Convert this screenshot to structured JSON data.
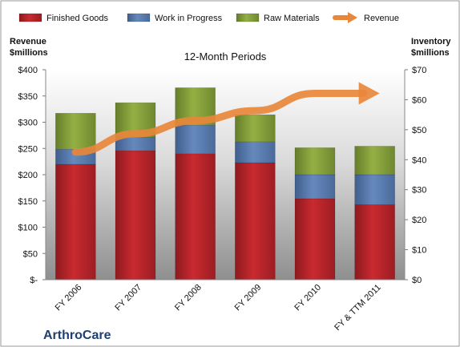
{
  "company": "ArthroCare",
  "colors": {
    "finished_goods": "#c0262c",
    "work_in_progress": "#5b7fb2",
    "raw_materials": "#8aa53e",
    "revenue": "#e8873a"
  },
  "chart_data": {
    "type": "bar",
    "stacked": true,
    "title": "12-Month Periods",
    "categories": [
      "FY 2006",
      "FY 2007",
      "FY 2008",
      "FY 2009",
      "FY 2010",
      "FY & TTM 2011"
    ],
    "left_axis": {
      "title_lines": [
        "Revenue",
        "$millions"
      ],
      "ylim": [
        0,
        400
      ],
      "ticks": [
        0,
        50,
        100,
        150,
        200,
        250,
        300,
        350,
        400
      ],
      "tick_labels": [
        "$-",
        "$50",
        "$100",
        "$150",
        "$200",
        "$250",
        "$300",
        "$350",
        "$400"
      ]
    },
    "right_axis": {
      "title_lines": [
        "Inventory",
        "$millions"
      ],
      "ylim": [
        0,
        70
      ],
      "ticks": [
        0,
        10,
        20,
        30,
        40,
        50,
        60,
        70
      ],
      "tick_labels": [
        "$0",
        "$10",
        "$20",
        "$30",
        "$40",
        "$50",
        "$60",
        "$70"
      ]
    },
    "series": [
      {
        "name": "Finished Goods",
        "type": "bar",
        "axis": "right",
        "values": [
          38.5,
          43.0,
          42.0,
          39.0,
          27.0,
          25.0
        ]
      },
      {
        "name": "Work in Progress",
        "type": "bar",
        "axis": "right",
        "values": [
          5.0,
          4.5,
          9.5,
          7.0,
          8.0,
          10.0
        ]
      },
      {
        "name": "Raw Materials",
        "type": "bar",
        "axis": "right",
        "values": [
          12.0,
          11.5,
          12.5,
          9.0,
          9.0,
          9.5
        ]
      },
      {
        "name": "Revenue",
        "type": "line",
        "axis": "left",
        "values": [
          243,
          278,
          303,
          322,
          355,
          355
        ]
      }
    ],
    "legend": {
      "position": "top",
      "items": [
        "Finished Goods",
        "Work in Progress",
        "Raw Materials",
        "Revenue"
      ]
    },
    "grid": false
  }
}
